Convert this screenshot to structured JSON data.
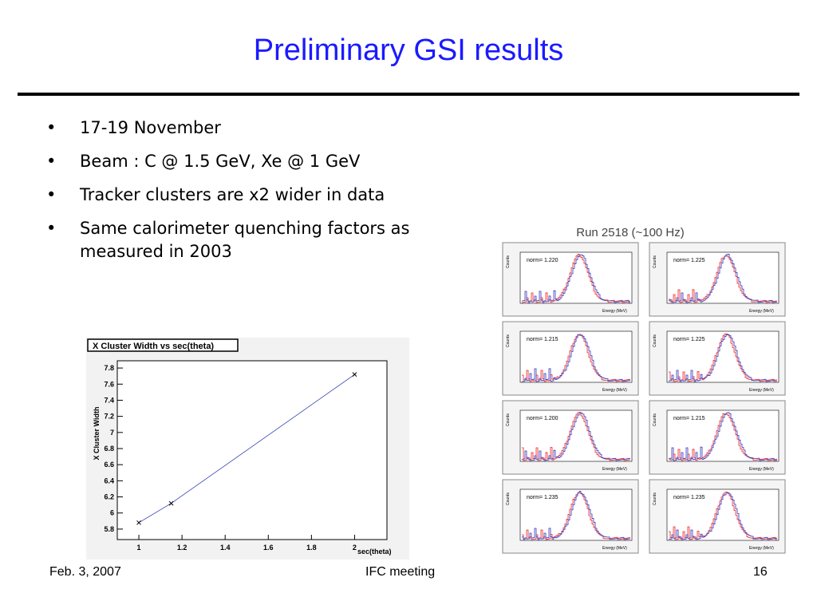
{
  "header": {
    "title": "Preliminary GSI results"
  },
  "bullets": [
    "17-19 November",
    "Beam : C @ 1.5 GeV, Xe @ 1 GeV",
    "Tracker clusters are x2 wider in data",
    "Same calorimeter quenching factors as measured in 2003"
  ],
  "chart_data": {
    "type": "scatter",
    "title": "X Cluster Width vs sec(theta)",
    "x_label": "sec(theta)",
    "y_label": "X Cluster Width",
    "x": [
      1,
      1.15,
      2
    ],
    "values": [
      5.88,
      6.12,
      7.72
    ],
    "color": "#2233aa",
    "xlim": [
      0.9,
      2.15
    ],
    "ylim": [
      5.67,
      7.89
    ],
    "xticks": [
      1,
      1.2,
      1.4,
      1.6,
      1.8,
      2
    ],
    "yticks": [
      5.8,
      6,
      6.2,
      6.4,
      6.6,
      6.8,
      7,
      7.2,
      7.4,
      7.6,
      7.8
    ]
  },
  "histograms": {
    "title": "Run 2518 (~100 Hz)",
    "x_label": "Energy (MeV)",
    "y_label": "Counts",
    "panels": [
      {
        "norm": "norm= 1.220"
      },
      {
        "norm": "norm= 1.225"
      },
      {
        "norm": "norm= 1.215"
      },
      {
        "norm": "norm= 1.225"
      },
      {
        "norm": "norm= 1.200"
      },
      {
        "norm": "norm= 1.215"
      },
      {
        "norm": "norm= 1.235"
      },
      {
        "norm": "norm= 1.235"
      }
    ]
  },
  "footer": {
    "date": "Feb. 3, 2007",
    "event": "IFC meeting",
    "page": "16"
  }
}
